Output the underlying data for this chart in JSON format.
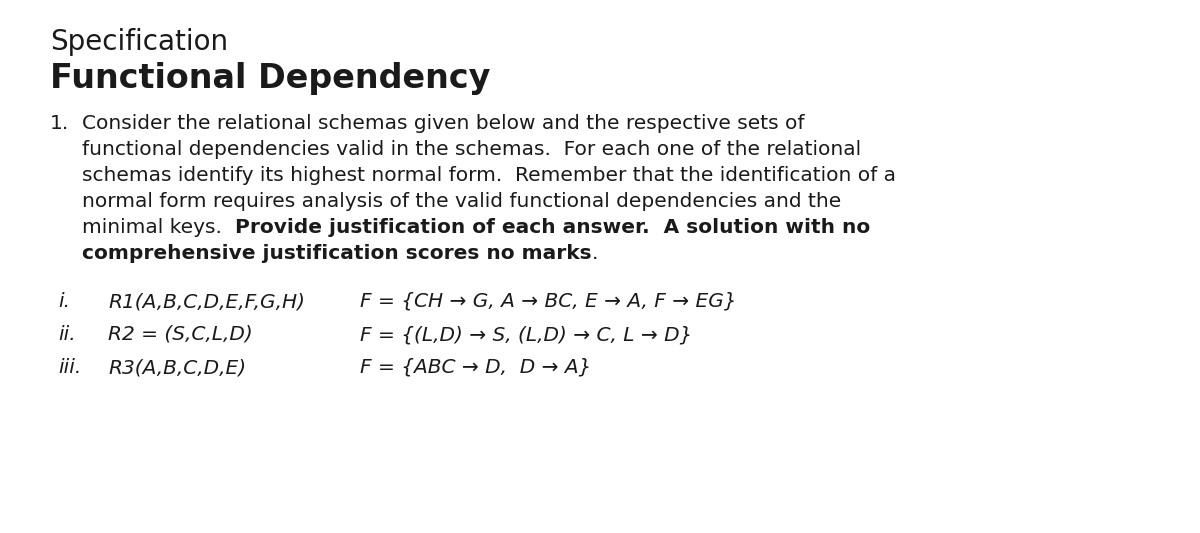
{
  "bg_color": "#ffffff",
  "text_color": "#1a1a1a",
  "title_regular": "Specification",
  "title_bold": "Functional Dependency",
  "para_line1": "Consider the relational schemas given below and the respective sets of",
  "para_line2": "functional dependencies valid in the schemas.  For each one of the relational",
  "para_line3": "schemas identify its highest normal form.  Remember that the identification of a",
  "para_line4": "normal form requires analysis of the valid functional dependencies and the",
  "para_line5_normal": "minimal keys.  ",
  "para_line5_bold": "Provide justification of each answer.  A solution with no",
  "para_line6_bold": "comprehensive justification scores no marks",
  "para_line6_period": ".",
  "number_label": "1.",
  "label_i": "i.",
  "label_ii": "ii.",
  "label_iii": "iii.",
  "item_i_schema": "R1(A,B,C,D,E,F,G,H)",
  "item_i_fd": "F = {CH → G, A → BC, E → A, F → EG}",
  "item_ii_schema": "R2 = (S,C,L,D)",
  "item_ii_fd": "F = {(L,D) → S, (L,D) → C, L → D}",
  "item_iii_schema": "R3(A,B,C,D,E)",
  "item_iii_fd": "F = {ABC → D,  D → A}",
  "title_reg_size": 20,
  "title_bold_size": 24,
  "body_size": 14.5,
  "item_size": 14.5,
  "fig_width": 12.0,
  "fig_height": 5.33,
  "dpi": 100
}
